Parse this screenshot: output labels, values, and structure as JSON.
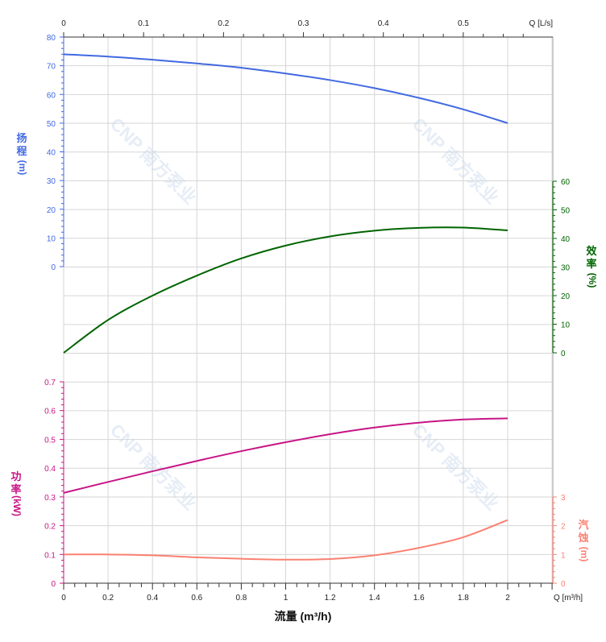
{
  "chart_data": {
    "type": "line",
    "x": [
      0,
      0.2,
      0.4,
      0.6,
      0.8,
      1.0,
      1.2,
      1.4,
      1.6,
      1.8,
      2.0
    ],
    "xlim": [
      0,
      2.2
    ],
    "xticks": [
      0,
      0.2,
      0.4,
      0.6,
      0.8,
      1,
      1.2,
      1.4,
      1.6,
      1.8,
      2
    ],
    "xlabel": "流量 (m³/h)",
    "x_unit_label": "Q [m³/h]",
    "top_axis": {
      "unit_label": "Q [L/s]",
      "ticks": [
        0,
        0.1,
        0.2,
        0.3,
        0.4,
        0.5
      ],
      "conversion_per_m3h": 0.27778
    },
    "grid": true,
    "series": [
      {
        "key": "head",
        "axis_label": [
          "扬",
          "程",
          "(m)"
        ],
        "color": "#4169E1",
        "axis": "left-top",
        "ylim": [
          0,
          80
        ],
        "yticks": [
          0,
          10,
          20,
          30,
          40,
          50,
          60,
          70,
          80
        ],
        "values": [
          74,
          73.2,
          72.1,
          70.8,
          69.3,
          67.3,
          65,
          62.2,
          58.8,
          54.8,
          50
        ]
      },
      {
        "key": "efficiency",
        "axis_label": [
          "效",
          "率",
          "(%)"
        ],
        "color": "#006400",
        "axis": "right-middle",
        "ylim": [
          0,
          60
        ],
        "yticks": [
          0,
          10,
          20,
          30,
          40,
          50,
          60
        ],
        "values": [
          0,
          11.5,
          20,
          27,
          33,
          37.5,
          40.7,
          42.7,
          43.7,
          43.8,
          42.8
        ]
      },
      {
        "key": "power",
        "axis_label": [
          "功",
          "率",
          "(kW)"
        ],
        "color": "#C71585",
        "axis": "left-bottom",
        "ylim": [
          0,
          0.7
        ],
        "yticks": [
          0,
          0.1,
          0.2,
          0.3,
          0.4,
          0.5,
          0.6,
          0.7
        ],
        "values": [
          0.314,
          0.352,
          0.389,
          0.425,
          0.459,
          0.49,
          0.518,
          0.541,
          0.558,
          0.569,
          0.573
        ]
      },
      {
        "key": "npsh",
        "axis_label": [
          "汽",
          "蚀",
          "(m)"
        ],
        "color": "#FA8072",
        "axis": "right-bottom",
        "ylim": [
          0,
          3
        ],
        "yticks": [
          0,
          1,
          2,
          3
        ],
        "values": [
          1.0,
          1.0,
          0.97,
          0.9,
          0.85,
          0.82,
          0.84,
          0.97,
          1.23,
          1.6,
          2.2
        ]
      }
    ]
  },
  "watermark": "CNP 南方泵业"
}
